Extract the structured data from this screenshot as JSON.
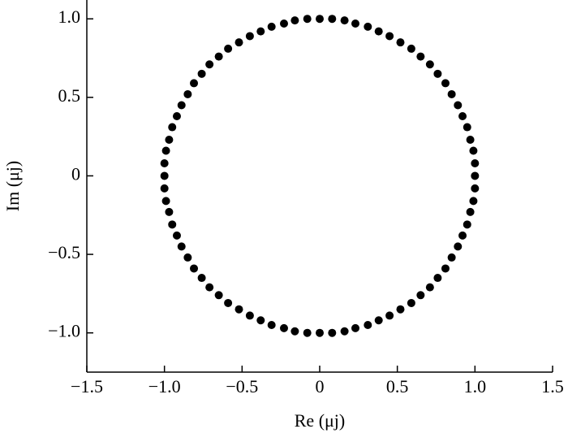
{
  "chart_data": {
    "type": "scatter",
    "xlabel": "Re (μj)",
    "ylabel": "Im (μj)",
    "color": "#000000",
    "xlim": [
      -1.5,
      1.5
    ],
    "ylim": [
      -1.25,
      1.12
    ],
    "xticks": [
      {
        "value": -1.5,
        "label": "−1.5"
      },
      {
        "value": -1.0,
        "label": "−1.0"
      },
      {
        "value": -0.5,
        "label": "−0.5"
      },
      0,
      0.5,
      {
        "value": 1.0,
        "label": "1.0"
      },
      {
        "value": 1.5,
        "label": "1.5"
      }
    ],
    "yticks": [
      {
        "value": -1.0,
        "label": "−1.0"
      },
      {
        "value": -0.5,
        "label": "−0.5"
      },
      0,
      0.5,
      {
        "value": 1.0,
        "label": "1.0"
      }
    ],
    "x": [
      1,
      1,
      0.99,
      0.97,
      0.95,
      0.92,
      0.89,
      0.85,
      0.81,
      0.76,
      0.71,
      0.65,
      0.59,
      0.52,
      0.45,
      0.38,
      0.31,
      0.23,
      0.16,
      0.08,
      0,
      -0.08,
      -0.16,
      -0.23,
      -0.31,
      -0.38,
      -0.45,
      -0.52,
      -0.59,
      -0.65,
      -0.71,
      -0.76,
      -0.81,
      -0.85,
      -0.89,
      -0.92,
      -0.95,
      -0.97,
      -0.99,
      -1,
      -1,
      -1,
      -0.99,
      -0.97,
      -0.95,
      -0.92,
      -0.89,
      -0.85,
      -0.81,
      -0.76,
      -0.71,
      -0.65,
      -0.59,
      -0.52,
      -0.45,
      -0.38,
      -0.31,
      -0.23,
      -0.16,
      -0.08,
      0,
      0.08,
      0.16,
      0.23,
      0.31,
      0.38,
      0.45,
      0.52,
      0.59,
      0.65,
      0.71,
      0.76,
      0.81,
      0.85,
      0.89,
      0.92,
      0.95,
      0.97,
      0.99,
      1
    ],
    "values": [
      0,
      0.08,
      0.16,
      0.23,
      0.31,
      0.38,
      0.45,
      0.52,
      0.59,
      0.65,
      0.71,
      0.76,
      0.81,
      0.85,
      0.89,
      0.92,
      0.95,
      0.97,
      0.99,
      1,
      1,
      1,
      0.99,
      0.97,
      0.95,
      0.92,
      0.89,
      0.85,
      0.81,
      0.76,
      0.71,
      0.65,
      0.59,
      0.52,
      0.45,
      0.38,
      0.31,
      0.23,
      0.16,
      0.08,
      0,
      -0.08,
      -0.16,
      -0.23,
      -0.31,
      -0.38,
      -0.45,
      -0.52,
      -0.59,
      -0.65,
      -0.71,
      -0.76,
      -0.81,
      -0.85,
      -0.89,
      -0.92,
      -0.95,
      -0.97,
      -0.99,
      -1,
      -1,
      -1,
      -0.99,
      -0.97,
      -0.95,
      -0.92,
      -0.89,
      -0.85,
      -0.81,
      -0.76,
      -0.71,
      -0.65,
      -0.59,
      -0.52,
      -0.45,
      -0.38,
      -0.31,
      -0.23,
      -0.16,
      -0.08
    ]
  }
}
